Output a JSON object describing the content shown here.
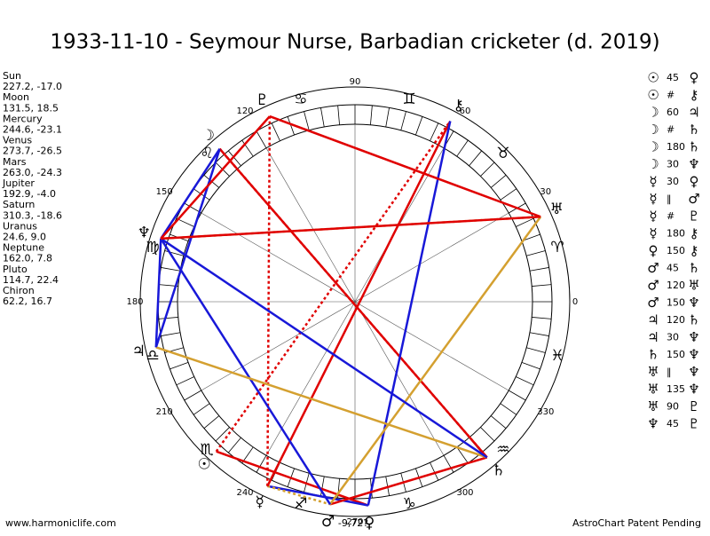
{
  "title": "1933-11-10 - Seymour Nurse, Barbadian cricketer (d. 2019)",
  "planets": [
    {
      "name": "Sun",
      "glyph": "☉",
      "position": "227.2, -17.0"
    },
    {
      "name": "Moon",
      "glyph": "☽",
      "position": "131.5, 18.5"
    },
    {
      "name": "Mercury",
      "glyph": "☿",
      "position": "244.6, -23.1"
    },
    {
      "name": "Venus",
      "glyph": "♀",
      "position": "273.7, -26.5"
    },
    {
      "name": "Mars",
      "glyph": "♂",
      "position": "263.0, -24.3"
    },
    {
      "name": "Jupiter",
      "glyph": "♃",
      "position": "192.9, -4.0"
    },
    {
      "name": "Saturn",
      "glyph": "♄",
      "position": "310.3, -18.6"
    },
    {
      "name": "Uranus",
      "glyph": "♅",
      "position": "24.6, 9.0"
    },
    {
      "name": "Neptune",
      "glyph": "♆",
      "position": "162.0, 7.8"
    },
    {
      "name": "Pluto",
      "glyph": "♇",
      "position": "114.7, 22.4"
    },
    {
      "name": "Chiron",
      "glyph": "⚷",
      "position": "62.2, 16.7"
    }
  ],
  "zodiac": [
    "♈",
    "♉",
    "♊",
    "♋",
    "♌",
    "♍",
    "♎",
    "♏",
    "♐",
    "♑",
    "♒",
    "♓"
  ],
  "degree_labels": [
    0,
    30,
    60,
    90,
    120,
    150,
    180,
    210,
    240,
    270,
    300,
    330
  ],
  "aspects": [
    {
      "from": "☉",
      "aspect": "45",
      "to": "♀"
    },
    {
      "from": "☉",
      "aspect": "#",
      "to": "⚷"
    },
    {
      "from": "☽",
      "aspect": "60",
      "to": "♃"
    },
    {
      "from": "☽",
      "aspect": "#",
      "to": "♄"
    },
    {
      "from": "☽",
      "aspect": "180",
      "to": "♄"
    },
    {
      "from": "☽",
      "aspect": "30",
      "to": "♆"
    },
    {
      "from": "☿",
      "aspect": "30",
      "to": "♀"
    },
    {
      "from": "☿",
      "aspect": "‖",
      "to": "♂"
    },
    {
      "from": "☿",
      "aspect": "#",
      "to": "♇"
    },
    {
      "from": "☿",
      "aspect": "180",
      "to": "⚷"
    },
    {
      "from": "♀",
      "aspect": "150",
      "to": "⚷"
    },
    {
      "from": "♂",
      "aspect": "45",
      "to": "♄"
    },
    {
      "from": "♂",
      "aspect": "120",
      "to": "♅"
    },
    {
      "from": "♂",
      "aspect": "150",
      "to": "♆"
    },
    {
      "from": "♃",
      "aspect": "120",
      "to": "♄"
    },
    {
      "from": "♃",
      "aspect": "30",
      "to": "♆"
    },
    {
      "from": "♄",
      "aspect": "150",
      "to": "♆"
    },
    {
      "from": "♅",
      "aspect": "‖",
      "to": "♆"
    },
    {
      "from": "♅",
      "aspect": "135",
      "to": "♆"
    },
    {
      "from": "♅",
      "aspect": "90",
      "to": "♇"
    },
    {
      "from": "♆",
      "aspect": "45",
      "to": "♇"
    }
  ],
  "aspect_colors": {
    "45": "#e00000",
    "90": "#e00000",
    "135": "#e00000",
    "180": "#e00000",
    "30": "#1818d8",
    "60": "#1818d8",
    "150": "#1818d8",
    "120": "#d4a030",
    "#": "#e00000",
    "‖": "#d4a030"
  },
  "marker": "-9,72?",
  "footer": {
    "left": "www.harmoniclife.com",
    "right": "AstroChart Patent Pending"
  }
}
